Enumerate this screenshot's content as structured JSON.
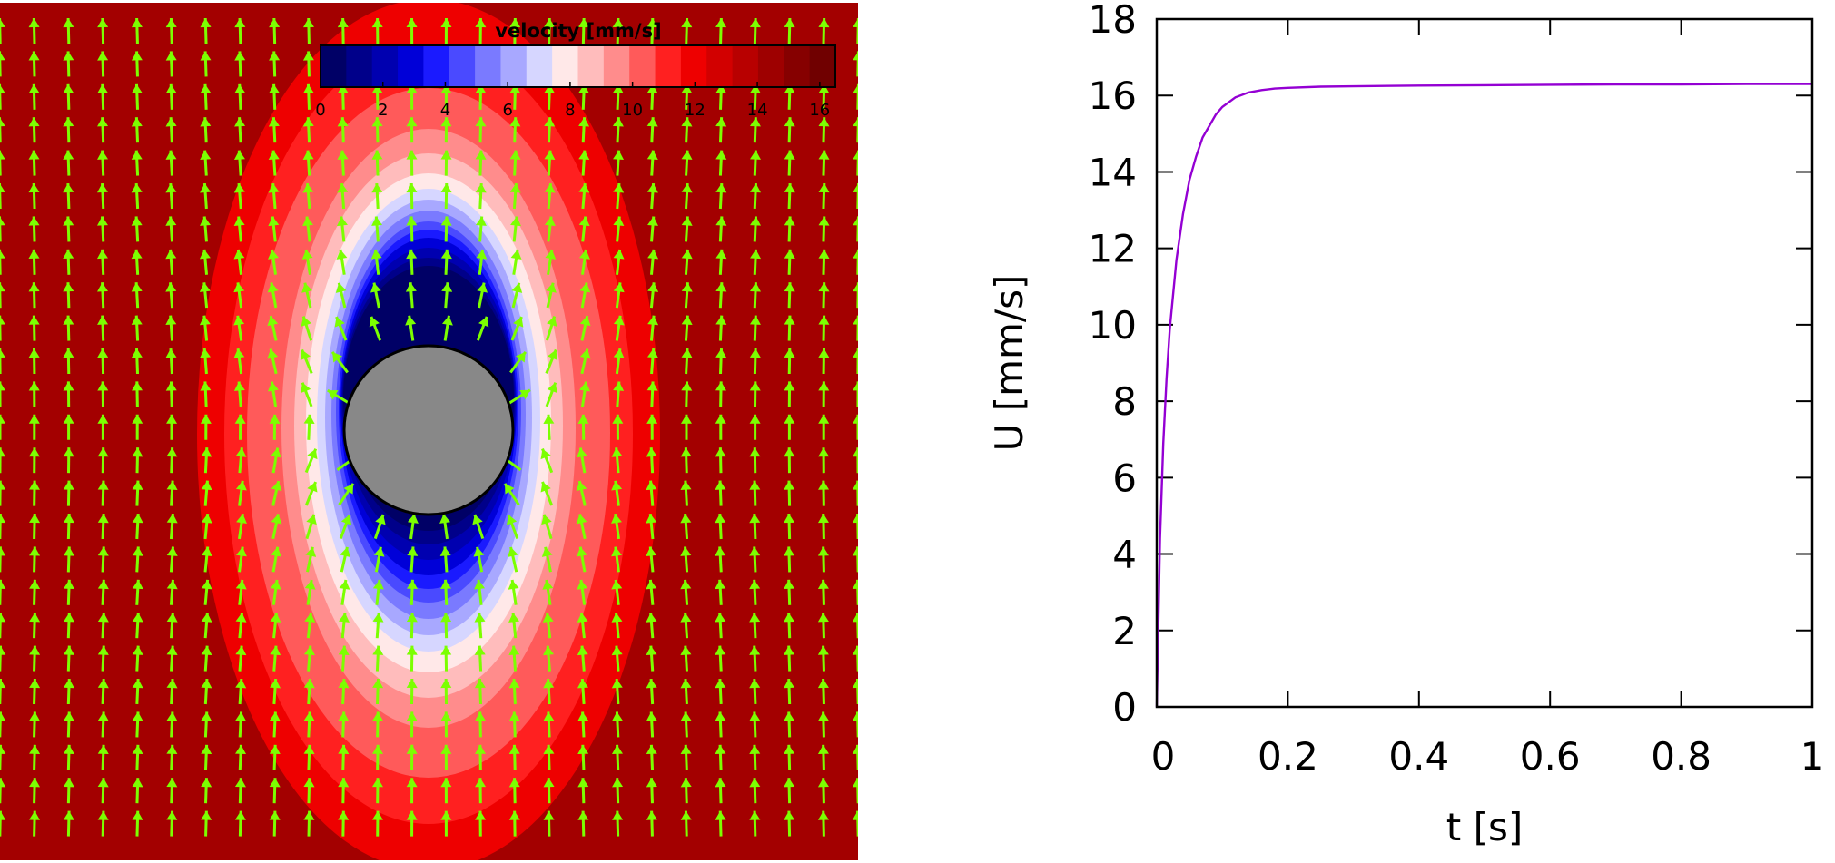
{
  "chart_data": [
    {
      "type": "heatmap",
      "colorbar": {
        "title": "velocity [mm/s]",
        "ticks": [
          "0",
          "2",
          "4",
          "6",
          "8",
          "10",
          "12",
          "14",
          "16"
        ],
        "range": [
          0,
          16.5
        ],
        "colors": [
          "#000066",
          "#00008a",
          "#0000b0",
          "#0000d8",
          "#1a1aff",
          "#4a4aff",
          "#7a7aff",
          "#a8a8ff",
          "#d6d6ff",
          "#ffe8e8",
          "#ffbcbc",
          "#ff8c8c",
          "#ff5a5a",
          "#ff2020",
          "#ee0000",
          "#d20000",
          "#b80000",
          "#9e0000",
          "#860000",
          "#700000"
        ]
      },
      "field": "flow around a fixed circular obstacle, free-stream velocity about 16.3 mm/s in the upward direction",
      "arrow_color": "#7cff00",
      "obstacle_color": "#888888"
    },
    {
      "type": "line",
      "xlabel": "t [s]",
      "ylabel": "U [mm/s]",
      "xlim": [
        0,
        1
      ],
      "ylim": [
        0,
        18
      ],
      "xticks": [
        "0",
        "0.2",
        "0.4",
        "0.6",
        "0.8",
        "1"
      ],
      "yticks": [
        "0",
        "2",
        "4",
        "6",
        "8",
        "10",
        "12",
        "14",
        "16",
        "18"
      ],
      "series": [
        {
          "color": "#9400d3",
          "x": [
            0,
            0.005,
            0.01,
            0.015,
            0.02,
            0.03,
            0.04,
            0.05,
            0.06,
            0.07,
            0.08,
            0.09,
            0.1,
            0.12,
            0.14,
            0.16,
            0.18,
            0.2,
            0.25,
            0.3,
            0.4,
            0.5,
            0.6,
            0.7,
            0.8,
            0.9,
            1.0
          ],
          "y": [
            0,
            4.4,
            6.9,
            8.6,
            9.9,
            11.7,
            12.9,
            13.8,
            14.4,
            14.9,
            15.2,
            15.5,
            15.7,
            15.95,
            16.08,
            16.14,
            16.18,
            16.2,
            16.23,
            16.24,
            16.26,
            16.27,
            16.28,
            16.29,
            16.29,
            16.3,
            16.3
          ]
        }
      ]
    }
  ]
}
